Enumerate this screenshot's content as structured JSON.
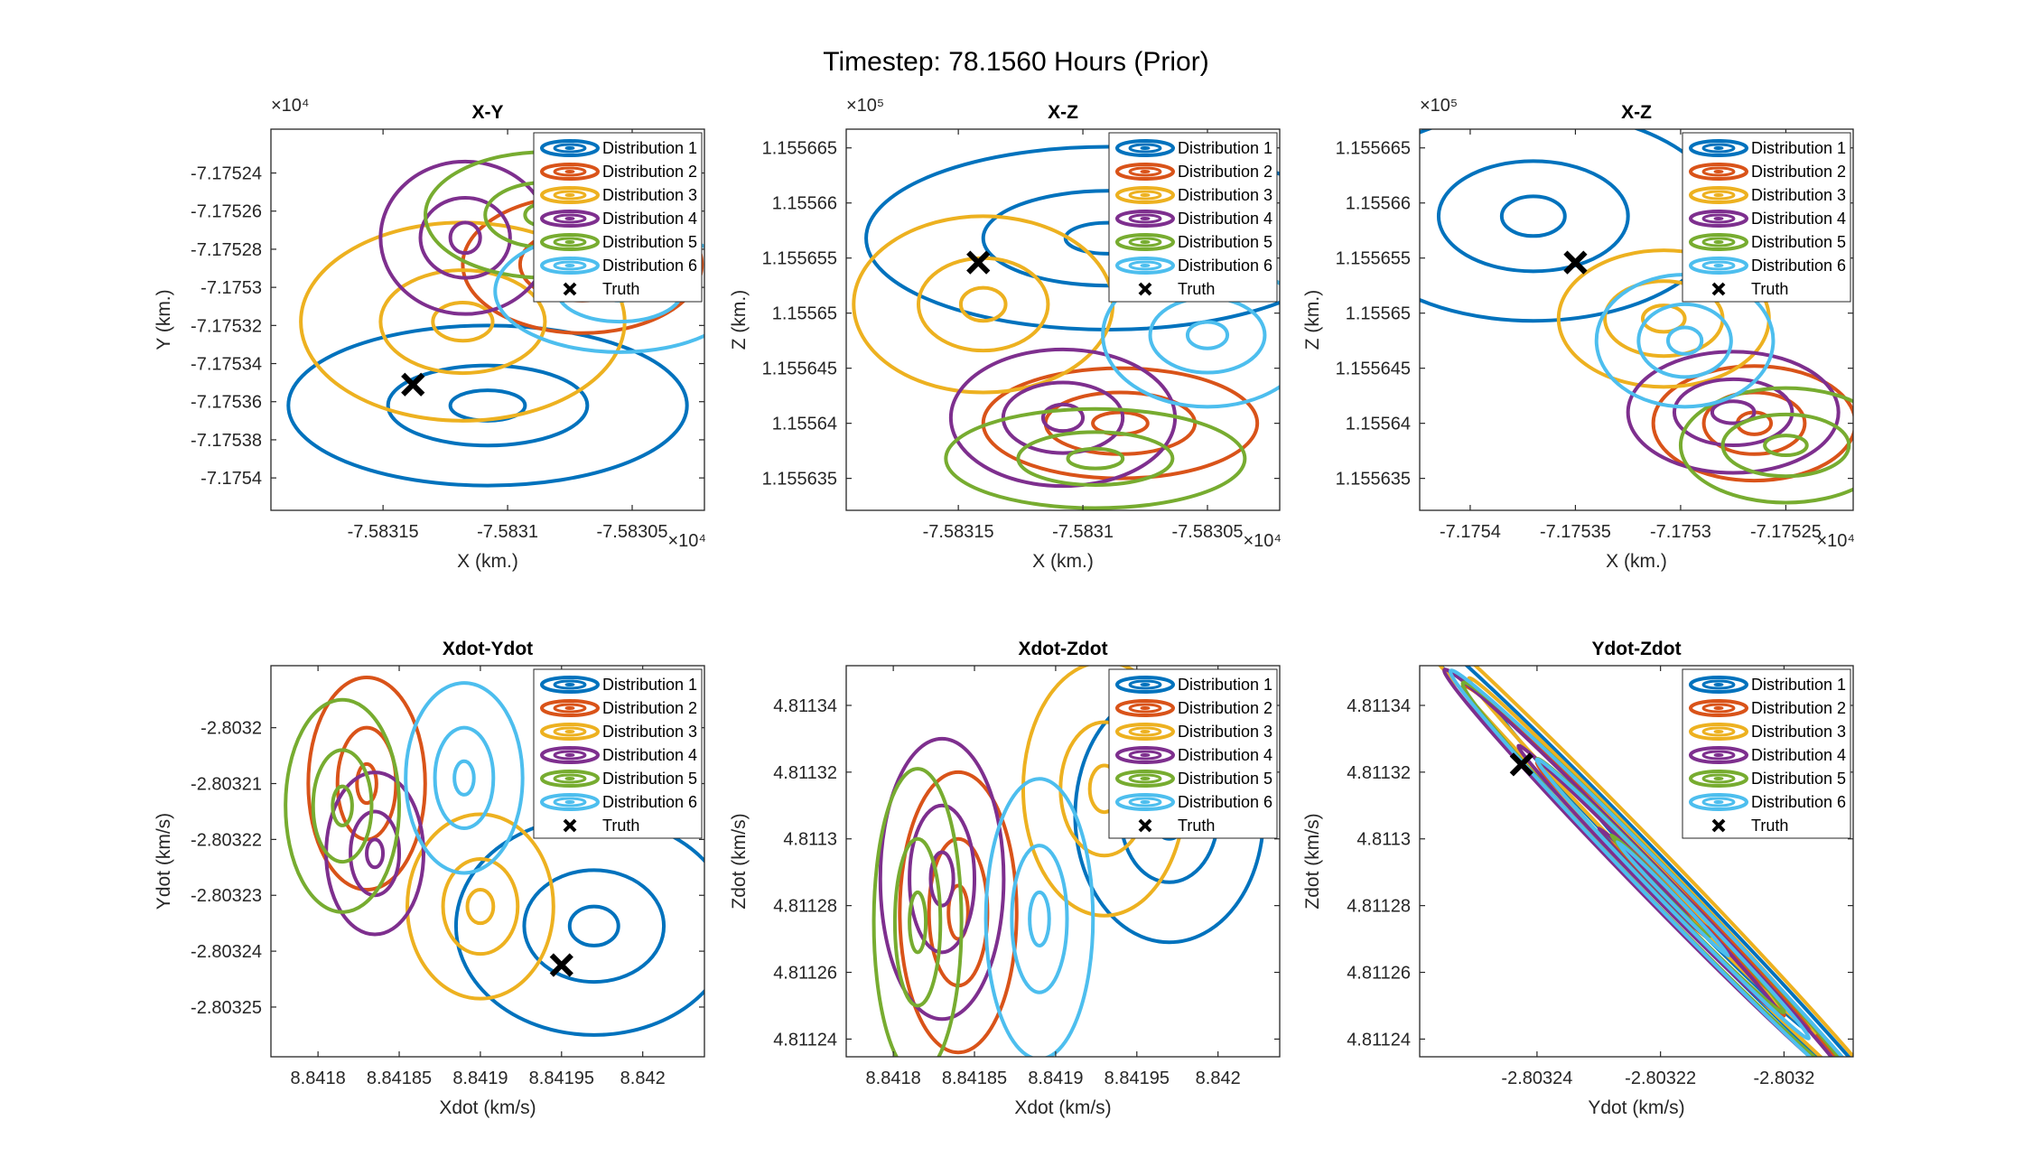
{
  "figure_title": "Timestep: 78.1560 Hours (Prior)",
  "colors": {
    "Distribution 1": "#0072BD",
    "Distribution 2": "#D95319",
    "Distribution 3": "#EDB120",
    "Distribution 4": "#7E2F8E",
    "Distribution 5": "#77AC30",
    "Distribution 6": "#4DBEEE",
    "Truth": "#000000"
  },
  "legend": [
    "Distribution 1",
    "Distribution 2",
    "Distribution 3",
    "Distribution 4",
    "Distribution 5",
    "Distribution 6",
    "Truth"
  ],
  "chart_data": [
    {
      "type": "scatter",
      "title": "X-Y",
      "xlabel": "X (km.)",
      "ylabel": "Y (km.)",
      "x_exponent": "×10⁴",
      "y_exponent": "×10⁴",
      "xticks": [
        -7.58315,
        -7.5831,
        -7.58305
      ],
      "xtick_labels": [
        "-7.58315",
        "-7.5831",
        "-7.58305"
      ],
      "yticks": [
        -7.17524,
        -7.17526,
        -7.17528,
        -7.1753,
        -7.17532,
        -7.17534,
        -7.17536,
        -7.17538,
        -7.1754
      ],
      "ytick_labels": [
        "-7.17524",
        "-7.17526",
        "-7.17528",
        "-7.1753",
        "-7.17532",
        "-7.17534",
        "-7.17536",
        "-7.17538",
        "-7.1754"
      ],
      "xlim": [
        -7.583195,
        -7.583021
      ],
      "ylim": [
        -7.175417,
        -7.175217
      ],
      "legend_position": "top-right",
      "truth": [
        -7.583138,
        -7.175351
      ],
      "ellipses": [
        {
          "series": "Distribution 1",
          "cx": -7.583108,
          "cy": -7.175362,
          "rx": [
            1.5e-05,
            4e-05,
            8e-05
          ],
          "ry": [
            8e-06,
            2.1e-05,
            4.2e-05
          ]
        },
        {
          "series": "Distribution 2",
          "cx": -7.58307,
          "cy": -7.175288,
          "rx": [
            8e-06,
            2.5e-05,
            4.8e-05
          ],
          "ry": [
            7e-06,
            1.9e-05,
            3.6e-05
          ]
        },
        {
          "series": "Distribution 3",
          "cx": -7.583118,
          "cy": -7.175318,
          "rx": [
            1.2e-05,
            3.3e-05,
            6.5e-05
          ],
          "ry": [
            1e-05,
            2.7e-05,
            5.2e-05
          ]
        },
        {
          "series": "Distribution 4",
          "cx": -7.583117,
          "cy": -7.175274,
          "rx": [
            6e-06,
            1.8e-05,
            3.4e-05
          ],
          "ry": [
            8e-06,
            2.1e-05,
            4e-05
          ]
        },
        {
          "series": "Distribution 5",
          "cx": -7.583085,
          "cy": -7.175262,
          "rx": [
            8e-06,
            2.4e-05,
            4.8e-05
          ],
          "ry": [
            6e-06,
            1.7e-05,
            3.3e-05
          ]
        },
        {
          "series": "Distribution 6",
          "cx": -7.583055,
          "cy": -7.175302,
          "rx": [
            8e-06,
            2.5e-05,
            5e-05
          ],
          "ry": [
            5e-06,
            1.6e-05,
            3.2e-05
          ]
        }
      ]
    },
    {
      "type": "scatter",
      "title": "X-Z",
      "xlabel": "X (km.)",
      "ylabel": "Z (km.)",
      "x_exponent": "×10⁴",
      "y_exponent": "×10⁵",
      "xticks": [
        -7.58315,
        -7.5831,
        -7.58305
      ],
      "xtick_labels": [
        "-7.58315",
        "-7.5831",
        "-7.58305"
      ],
      "yticks": [
        1.155665,
        1.15566,
        1.155655,
        1.15565,
        1.155645,
        1.15564,
        1.155635
      ],
      "ytick_labels": [
        "1.155665",
        "1.15566",
        "1.155655",
        "1.15565",
        "1.155645",
        "1.15564",
        "1.155635"
      ],
      "xlim": [
        -7.583195,
        -7.583021
      ],
      "ylim": [
        1.1556321,
        1.1556667
      ],
      "legend_position": "top-right",
      "truth": [
        -7.583142,
        1.1556546
      ],
      "ellipses": [
        {
          "series": "Distribution 1",
          "cx": -7.58309,
          "cy": 1.1556568,
          "rx": [
            1.7e-05,
            5e-05,
            9.7e-05
          ],
          "ry": [
            1.4e-06,
            4.3e-06,
            8.3e-06
          ]
        },
        {
          "series": "Distribution 2",
          "cx": -7.583085,
          "cy": 1.15564,
          "rx": [
            1.1e-05,
            3e-05,
            5.5e-05
          ],
          "ry": [
            1e-06,
            2.8e-06,
            5e-06
          ]
        },
        {
          "series": "Distribution 3",
          "cx": -7.58314,
          "cy": 1.1556508,
          "rx": [
            9e-06,
            2.6e-05,
            5.2e-05
          ],
          "ry": [
            1.5e-06,
            4.2e-06,
            8e-06
          ]
        },
        {
          "series": "Distribution 4",
          "cx": -7.583108,
          "cy": 1.1556405,
          "rx": [
            8e-06,
            2.4e-05,
            4.5e-05
          ],
          "ry": [
            1.2e-06,
            3.2e-06,
            6.2e-06
          ]
        },
        {
          "series": "Distribution 5",
          "cx": -7.583095,
          "cy": 1.1556368,
          "rx": [
            1.1e-05,
            3.1e-05,
            6e-05
          ],
          "ry": [
            9e-07,
            2.4e-06,
            4.5e-06
          ]
        },
        {
          "series": "Distribution 6",
          "cx": -7.58305,
          "cy": 1.155648,
          "rx": [
            8e-06,
            2.3e-05,
            4.2e-05
          ],
          "ry": [
            1.2e-06,
            3.4e-06,
            6.5e-06
          ]
        }
      ]
    },
    {
      "type": "scatter",
      "title": "X-Z",
      "xlabel": "X (km.)",
      "ylabel": "Z (km.)",
      "x_exponent": "×10⁴",
      "y_exponent": "×10⁵",
      "xticks": [
        -7.1754,
        -7.17535,
        -7.1753,
        -7.17525
      ],
      "xtick_labels": [
        "-7.1754",
        "-7.17535",
        "-7.1753",
        "-7.17525"
      ],
      "yticks": [
        1.155665,
        1.15566,
        1.155655,
        1.15565,
        1.155645,
        1.15564,
        1.155635
      ],
      "ytick_labels": [
        "1.155665",
        "1.15566",
        "1.155655",
        "1.15565",
        "1.155645",
        "1.15564",
        "1.155635"
      ],
      "xlim": [
        -7.175424,
        -7.175218
      ],
      "ylim": [
        1.1556321,
        1.1556667
      ],
      "legend_position": "top-right",
      "truth": [
        -7.17535,
        1.1556546
      ],
      "ellipses": [
        {
          "series": "Distribution 1",
          "cx": -7.17537,
          "cy": 1.1556588,
          "rx": [
            1.5e-05,
            4.5e-05,
            9e-05
          ],
          "ry": [
            1.8e-06,
            5e-06,
            9.5e-06
          ]
        },
        {
          "series": "Distribution 2",
          "cx": -7.175265,
          "cy": 1.15564,
          "rx": [
            8e-06,
            2.4e-05,
            4.8e-05
          ],
          "ry": [
            1e-06,
            2.8e-06,
            5.2e-06
          ]
        },
        {
          "series": "Distribution 3",
          "cx": -7.175308,
          "cy": 1.1556495,
          "rx": [
            1e-05,
            2.8e-05,
            5e-05
          ],
          "ry": [
            1.2e-06,
            3.4e-06,
            6.2e-06
          ]
        },
        {
          "series": "Distribution 4",
          "cx": -7.175275,
          "cy": 1.155641,
          "rx": [
            1e-05,
            2.8e-05,
            5e-05
          ],
          "ry": [
            1e-06,
            3e-06,
            5.5e-06
          ]
        },
        {
          "series": "Distribution 5",
          "cx": -7.17525,
          "cy": 1.155638,
          "rx": [
            1e-05,
            3e-05,
            5e-05
          ],
          "ry": [
            9e-07,
            2.8e-06,
            5.2e-06
          ]
        },
        {
          "series": "Distribution 6",
          "cx": -7.175298,
          "cy": 1.1556475,
          "rx": [
            8e-06,
            2.2e-05,
            4.2e-05
          ],
          "ry": [
            1.2e-06,
            3.3e-06,
            6e-06
          ]
        }
      ]
    },
    {
      "type": "scatter",
      "title": "Xdot-Ydot",
      "xlabel": "Xdot (km/s)",
      "ylabel": "Ydot (km/s)",
      "xticks": [
        8.8418,
        8.84185,
        8.8419,
        8.84195,
        8.842
      ],
      "xtick_labels": [
        "8.8418",
        "8.84185",
        "8.8419",
        "8.84195",
        "8.842"
      ],
      "yticks": [
        -2.8032,
        -2.80321,
        -2.80322,
        -2.80323,
        -2.80324,
        -2.80325
      ],
      "ytick_labels": [
        "-2.8032",
        "-2.80321",
        "-2.80322",
        "-2.80323",
        "-2.80324",
        "-2.80325"
      ],
      "xlim": [
        8.841771,
        8.842038
      ],
      "ylim": [
        -2.8032589,
        -2.8031889
      ],
      "legend_position": "top-right",
      "truth": [
        8.84195,
        -2.8032425
      ],
      "ellipses": [
        {
          "series": "Distribution 1",
          "cx": 8.84197,
          "cy": -2.8032355,
          "rx": [
            1.5e-05,
            4.3e-05,
            8.5e-05
          ],
          "ry": [
            3.5e-06,
            1e-05,
            1.95e-05
          ]
        },
        {
          "series": "Distribution 2",
          "cx": 8.84183,
          "cy": -2.80321,
          "rx": [
            6e-06,
            1.8e-05,
            3.6e-05
          ],
          "ry": [
            3.5e-06,
            1e-05,
            1.9e-05
          ]
        },
        {
          "series": "Distribution 3",
          "cx": 8.8419,
          "cy": -2.803232,
          "rx": [
            8e-06,
            2.3e-05,
            4.5e-05
          ],
          "ry": [
            3e-06,
            8.5e-06,
            1.65e-05
          ]
        },
        {
          "series": "Distribution 4",
          "cx": 8.841835,
          "cy": -2.8032225,
          "rx": [
            5e-06,
            1.5e-05,
            3e-05
          ],
          "ry": [
            2.5e-06,
            7.5e-06,
            1.45e-05
          ]
        },
        {
          "series": "Distribution 5",
          "cx": 8.841815,
          "cy": -2.803214,
          "rx": [
            6e-06,
            1.8e-05,
            3.5e-05
          ],
          "ry": [
            3.5e-06,
            1e-05,
            1.9e-05
          ]
        },
        {
          "series": "Distribution 6",
          "cx": 8.84189,
          "cy": -2.803209,
          "rx": [
            6e-06,
            1.8e-05,
            3.6e-05
          ],
          "ry": [
            3e-06,
            9e-06,
            1.7e-05
          ]
        }
      ]
    },
    {
      "type": "scatter",
      "title": "Xdot-Zdot",
      "xlabel": "Xdot (km/s)",
      "ylabel": "Zdot (km/s)",
      "xticks": [
        8.8418,
        8.84185,
        8.8419,
        8.84195,
        8.842
      ],
      "xtick_labels": [
        "8.8418",
        "8.84185",
        "8.8419",
        "8.84195",
        "8.842"
      ],
      "yticks": [
        4.81134,
        4.81132,
        4.8113,
        4.81128,
        4.81126,
        4.81124
      ],
      "ytick_labels": [
        "4.81134",
        "4.81132",
        "4.8113",
        "4.81128",
        "4.81126",
        "4.81124"
      ],
      "xlim": [
        8.841771,
        8.842038
      ],
      "ylim": [
        4.8112347,
        4.8113519
      ],
      "legend_position": "top-right",
      "truth": null,
      "ellipses": [
        {
          "series": "Distribution 1",
          "cx": 8.84197,
          "cy": 4.811307,
          "rx": [
            1e-05,
            3e-05,
            5.8e-05
          ],
          "ry": [
            7e-06,
            2e-05,
            3.8e-05
          ]
        },
        {
          "series": "Distribution 2",
          "cx": 8.84184,
          "cy": 4.811278,
          "rx": [
            6e-06,
            1.8e-05,
            3.6e-05
          ],
          "ry": [
            8e-06,
            2.2e-05,
            4.2e-05
          ]
        },
        {
          "series": "Distribution 3",
          "cx": 8.84193,
          "cy": 4.811315,
          "rx": [
            9e-06,
            2.7e-05,
            5e-05
          ],
          "ry": [
            7e-06,
            2e-05,
            3.8e-05
          ]
        },
        {
          "series": "Distribution 4",
          "cx": 8.84183,
          "cy": 4.811288,
          "rx": [
            7e-06,
            2e-05,
            3.8e-05
          ],
          "ry": [
            8e-06,
            2.2e-05,
            4.2e-05
          ]
        },
        {
          "series": "Distribution 5",
          "cx": 8.841815,
          "cy": 4.811275,
          "rx": [
            5e-06,
            1.4e-05,
            2.7e-05
          ],
          "ry": [
            9e-06,
            2.5e-05,
            4.6e-05
          ]
        },
        {
          "series": "Distribution 6",
          "cx": 8.84189,
          "cy": 4.811276,
          "rx": [
            6e-06,
            1.7e-05,
            3.3e-05
          ],
          "ry": [
            8e-06,
            2.2e-05,
            4.2e-05
          ]
        }
      ]
    },
    {
      "type": "scatter",
      "title": "Ydot-Zdot",
      "xlabel": "Ydot (km/s)",
      "ylabel": "Zdot (km/s)",
      "xticks": [
        -2.80324,
        -2.80322,
        -2.8032
      ],
      "xtick_labels": [
        "-2.80324",
        "-2.80322",
        "-2.8032"
      ],
      "yticks": [
        4.81134,
        4.81132,
        4.8113,
        4.81128,
        4.81126,
        4.81124
      ],
      "ytick_labels": [
        "4.81134",
        "4.81132",
        "4.8113",
        "4.81128",
        "4.81126",
        "4.81124"
      ],
      "xlim": [
        -2.803259,
        -2.8031888
      ],
      "ylim": [
        4.8112347,
        4.8113519
      ],
      "legend_position": "top-right",
      "truth": [
        -2.8032425,
        4.8113223
      ],
      "ellipses": [
        {
          "series": "Distribution 1",
          "cx": -2.803221,
          "cy": 4.81129,
          "a": [
            1e-05,
            2.5e-05,
            4e-05
          ],
          "b": [
            8e-07,
            2.2e-06,
            4e-06
          ]
        },
        {
          "series": "Distribution 2",
          "cx": -2.80322,
          "cy": 4.811285,
          "a": [
            8e-06,
            2e-05,
            3.2e-05
          ],
          "b": [
            8e-07,
            2.2e-06,
            4e-06
          ]
        },
        {
          "series": "Distribution 3",
          "cx": -2.803223,
          "cy": 4.811295,
          "a": [
            1.1e-05,
            2.8e-05,
            4.2e-05
          ],
          "b": [
            9e-07,
            2.5e-06,
            4.5e-06
          ]
        },
        {
          "series": "Distribution 4",
          "cx": -2.803222,
          "cy": 4.811288,
          "a": [
            8e-06,
            2.1e-05,
            3.3e-05
          ],
          "b": [
            7e-07,
            2e-06,
            3.6e-06
          ]
        },
        {
          "series": "Distribution 5",
          "cx": -2.80322,
          "cy": 4.811286,
          "a": [
            8e-06,
            2e-05,
            3.2e-05
          ],
          "b": [
            8e-07,
            2.2e-06,
            4e-06
          ]
        },
        {
          "series": "Distribution 6",
          "cx": -2.803218,
          "cy": 4.811282,
          "a": [
            9e-06,
            2.2e-05,
            3.6e-05
          ],
          "b": [
            8e-07,
            2.2e-06,
            4e-06
          ]
        }
      ]
    }
  ]
}
